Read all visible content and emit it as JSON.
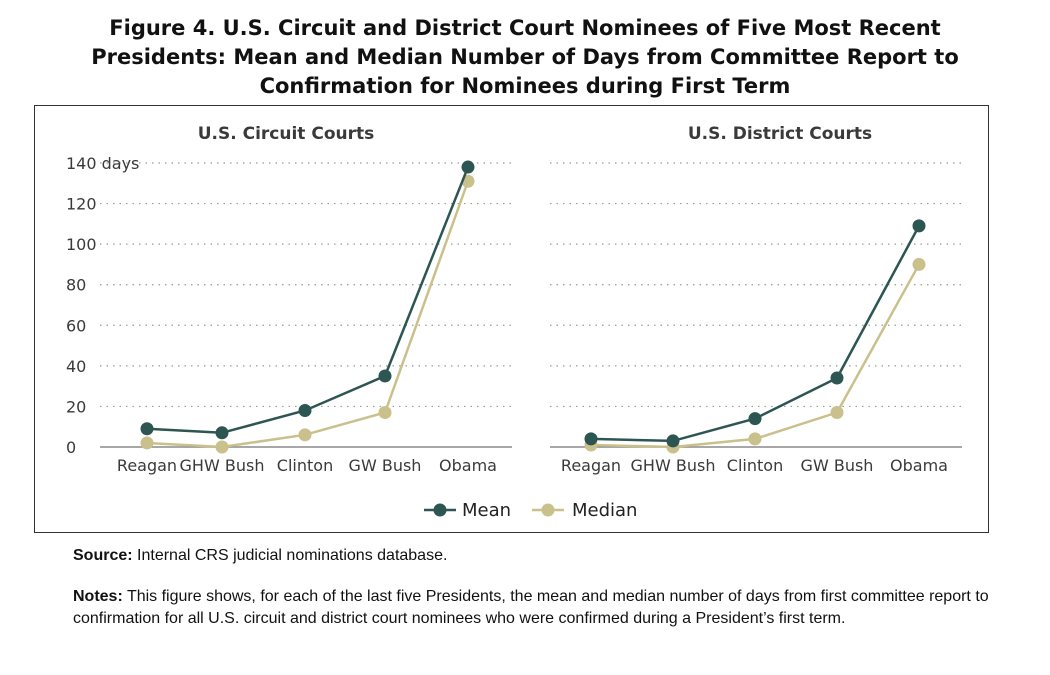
{
  "title_lines": [
    "Figure 4. U.S. Circuit and District Court Nominees of Five Most Recent",
    "Presidents: Mean and Median Number of Days from Committee Report to",
    "Confirmation for Nominees during First Term"
  ],
  "legend": {
    "mean": "Mean",
    "median": "Median"
  },
  "colors": {
    "mean": "#2d5652",
    "median": "#c9c08b",
    "grid": "#9a9a9a",
    "axis": "#8a8a8a"
  },
  "source": {
    "label": "Source:",
    "text": " Internal CRS judicial nominations database."
  },
  "notes": {
    "label": "Notes:",
    "text": " This figure shows, for each of the last five Presidents, the mean and median number of days from first committee report to confirmation for all U.S. circuit and district court nominees who were confirmed during a President’s first term."
  },
  "chart_data": [
    {
      "type": "line",
      "title": "U.S. Circuit Courts",
      "categories": [
        "Reagan",
        "GHW Bush",
        "Clinton",
        "GW Bush",
        "Obama"
      ],
      "series": [
        {
          "name": "Mean",
          "values": [
            9,
            7,
            18,
            35,
            138
          ]
        },
        {
          "name": "Median",
          "values": [
            2,
            0,
            6,
            17,
            131
          ]
        }
      ],
      "ylim": [
        0,
        140
      ],
      "yticks": [
        "0",
        "20",
        "40",
        "60",
        "80",
        "100",
        "120",
        "140 days"
      ],
      "grid": true
    },
    {
      "type": "line",
      "title": "U.S. District Courts",
      "categories": [
        "Reagan",
        "GHW Bush",
        "Clinton",
        "GW Bush",
        "Obama"
      ],
      "series": [
        {
          "name": "Mean",
          "values": [
            4,
            3,
            14,
            34,
            109
          ]
        },
        {
          "name": "Median",
          "values": [
            1,
            0,
            4,
            17,
            90
          ]
        }
      ],
      "ylim": [
        0,
        140
      ],
      "grid": true
    }
  ]
}
